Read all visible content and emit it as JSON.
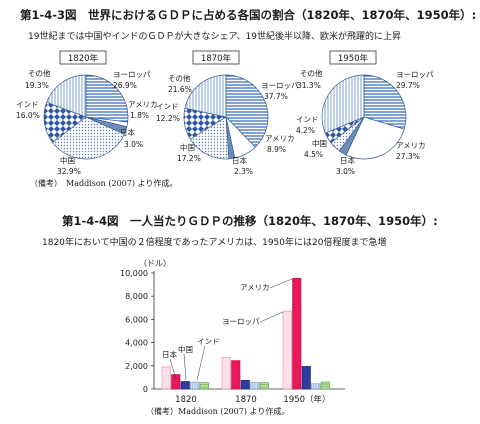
{
  "figure_top": {
    "title": "第1-4-3図　世界におけるＧＤＰに占める各国の割合（1820年、1870年、1950年）:",
    "subtitle": "19世紀までは中国やインドのＧＤＰが大きなシェア、19世紀後半以降、欧米が飛躍的に上昇",
    "note": "（備考）　Maddison (2007) より作成。"
  },
  "figure_bottom": {
    "title": "第1-4-4図　一人当たりＧＤＰの推移（1820年、1870年、1950年）:",
    "subtitle": "1820年において中国の２倍程度であったアメリカは、1950年には20倍程度まで急増",
    "note": "（備考）Maddison (2007) より作成。"
  },
  "chart_data": [
    {
      "type": "pie",
      "title": "1820年",
      "slices": [
        {
          "label": "ヨーロッパ",
          "value": 26.9,
          "display": "26.9%",
          "pattern": "hlines"
        },
        {
          "label": "アメリカ",
          "value": 1.8,
          "display": "1.8%",
          "pattern": "white"
        },
        {
          "label": "日本",
          "value": 3.0,
          "display": "3.0%",
          "pattern": "steel"
        },
        {
          "label": "中国",
          "value": 32.9,
          "display": "32.9%",
          "pattern": "dots"
        },
        {
          "label": "インド",
          "value": 16.0,
          "display": "16.0%",
          "pattern": "diamonds"
        },
        {
          "label": "その他",
          "value": 19.3,
          "display": "19.3%",
          "pattern": "vlines"
        }
      ]
    },
    {
      "type": "pie",
      "title": "1870年",
      "slices": [
        {
          "label": "ヨーロッパ",
          "value": 37.7,
          "display": "37.7%",
          "pattern": "hlines"
        },
        {
          "label": "アメリカ",
          "value": 8.9,
          "display": "8.9%",
          "pattern": "white"
        },
        {
          "label": "日本",
          "value": 2.3,
          "display": "2.3%",
          "pattern": "steel"
        },
        {
          "label": "中国",
          "value": 17.2,
          "display": "17.2%",
          "pattern": "dots"
        },
        {
          "label": "インド",
          "value": 12.2,
          "display": "12.2%",
          "pattern": "diamonds"
        },
        {
          "label": "その他",
          "value": 21.6,
          "display": "21.6%",
          "pattern": "vlines"
        }
      ]
    },
    {
      "type": "pie",
      "title": "1950年",
      "slices": [
        {
          "label": "ヨーロッパ",
          "value": 29.7,
          "display": "29.7%",
          "pattern": "hlines"
        },
        {
          "label": "アメリカ",
          "value": 27.3,
          "display": "27.3%",
          "pattern": "white"
        },
        {
          "label": "日本",
          "value": 3.0,
          "display": "3.0%",
          "pattern": "steel"
        },
        {
          "label": "中国",
          "value": 4.5,
          "display": "4.5%",
          "pattern": "dots"
        },
        {
          "label": "インド",
          "value": 4.2,
          "display": "4.2%",
          "pattern": "diamonds"
        },
        {
          "label": "その他",
          "value": 31.3,
          "display": "31.3%",
          "pattern": "vlines"
        }
      ]
    },
    {
      "type": "bar",
      "ylabel": "（ドル）",
      "ylim": [
        0,
        10000
      ],
      "yticks": [
        "0",
        "2,000",
        "4,000",
        "6,000",
        "8,000",
        "10,000"
      ],
      "categories": [
        "1820",
        "1870",
        "1950（年）"
      ],
      "series": [
        {
          "name": "ヨーロッパ",
          "values": [
            1900,
            2700,
            6700
          ],
          "color": "#fde0e8",
          "stroke": "#e38aa4"
        },
        {
          "name": "アメリカ",
          "values": [
            1250,
            2450,
            9550
          ],
          "color": "#e8195a",
          "stroke": "#c0103f"
        },
        {
          "name": "日本",
          "values": [
            650,
            750,
            1950
          ],
          "color": "#2e3c9e",
          "stroke": "#1c2a86"
        },
        {
          "name": "中国",
          "values": [
            600,
            550,
            450
          ],
          "color": "#cfe3f5",
          "stroke": "#6d8fbf"
        },
        {
          "name": "インド",
          "values": [
            550,
            550,
            600
          ],
          "color": "#b9e0a0",
          "stroke": "#4c9a35"
        }
      ],
      "grid": false
    }
  ]
}
